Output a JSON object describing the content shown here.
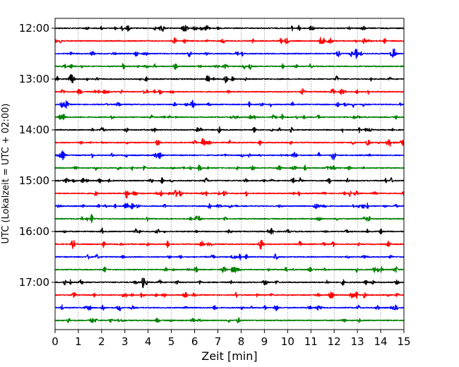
{
  "chart_data": {
    "type": "line",
    "title": "",
    "xlabel": "Zeit  [min]",
    "ylabel": "UTC (Lokalzeit = UTC + 02:00)",
    "xlim": [
      0,
      15
    ],
    "x_ticks": [
      "0",
      "1",
      "2",
      "3",
      "4",
      "5",
      "6",
      "7",
      "8",
      "9",
      "10",
      "11",
      "12",
      "13",
      "14",
      "15"
    ],
    "y_tick_labels": [
      "12:00",
      "13:00",
      "14:00",
      "15:00",
      "16:00",
      "17:00"
    ],
    "grid": "vertical dotted lines at each minute",
    "trace_interval_minutes": 15,
    "trace_colors": [
      "#000000",
      "#ff0000",
      "#0000ff",
      "#008000"
    ],
    "traces": [
      {
        "start": "12:00",
        "color": "#000000"
      },
      {
        "start": "12:15",
        "color": "#ff0000"
      },
      {
        "start": "12:30",
        "color": "#0000ff"
      },
      {
        "start": "12:45",
        "color": "#008000"
      },
      {
        "start": "13:00",
        "color": "#000000"
      },
      {
        "start": "13:15",
        "color": "#ff0000"
      },
      {
        "start": "13:30",
        "color": "#0000ff"
      },
      {
        "start": "13:45",
        "color": "#008000"
      },
      {
        "start": "14:00",
        "color": "#000000"
      },
      {
        "start": "14:15",
        "color": "#ff0000"
      },
      {
        "start": "14:30",
        "color": "#0000ff"
      },
      {
        "start": "14:45",
        "color": "#008000"
      },
      {
        "start": "15:00",
        "color": "#000000"
      },
      {
        "start": "15:15",
        "color": "#ff0000"
      },
      {
        "start": "15:30",
        "color": "#0000ff"
      },
      {
        "start": "15:45",
        "color": "#008000"
      },
      {
        "start": "16:00",
        "color": "#000000"
      },
      {
        "start": "16:15",
        "color": "#ff0000"
      },
      {
        "start": "16:30",
        "color": "#0000ff"
      },
      {
        "start": "16:45",
        "color": "#008000"
      },
      {
        "start": "17:00",
        "color": "#000000"
      },
      {
        "start": "17:15",
        "color": "#ff0000"
      },
      {
        "start": "17:30",
        "color": "#0000ff"
      },
      {
        "start": "17:45",
        "color": "#008000"
      }
    ]
  }
}
